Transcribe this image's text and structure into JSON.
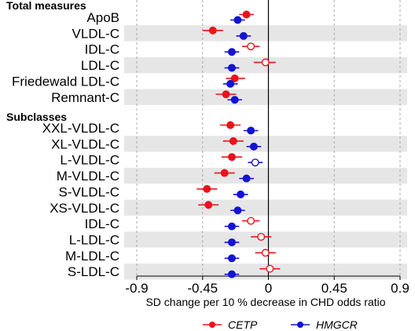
{
  "chart_data": {
    "type": "forest",
    "xlabel": "SD change per 10 % decrease in CHD odds ratio",
    "xlim": [
      -0.9,
      0.9
    ],
    "xticks": [
      -0.9,
      -0.45,
      0,
      0.45,
      0.9
    ],
    "xtick_labels": [
      "-0.9",
      "-0.45",
      "0",
      "0.45",
      "0.9"
    ],
    "grid": "vertical dashed at ticks",
    "legend_position": "bottom",
    "series": [
      {
        "name": "CETP",
        "color": "#e8141b"
      },
      {
        "name": "HMGCR",
        "color": "#1414d2"
      }
    ],
    "groups": [
      {
        "title": "Total measures",
        "rows": [
          {
            "label": "ApoB",
            "CETP": {
              "est": -0.15,
              "lo": -0.2,
              "hi": -0.1,
              "filled": true
            },
            "HMGCR": {
              "est": -0.21,
              "lo": -0.26,
              "hi": -0.16,
              "filled": true
            }
          },
          {
            "label": "VLDL-C",
            "CETP": {
              "est": -0.38,
              "lo": -0.45,
              "hi": -0.31,
              "filled": true
            },
            "HMGCR": {
              "est": -0.17,
              "lo": -0.22,
              "hi": -0.12,
              "filled": true
            }
          },
          {
            "label": "IDL-C",
            "CETP": {
              "est": -0.12,
              "lo": -0.18,
              "hi": -0.06,
              "filled": false
            },
            "HMGCR": {
              "est": -0.25,
              "lo": -0.3,
              "hi": -0.2,
              "filled": true
            }
          },
          {
            "label": "LDL-C",
            "CETP": {
              "est": -0.02,
              "lo": -0.1,
              "hi": 0.05,
              "filled": false
            },
            "HMGCR": {
              "est": -0.25,
              "lo": -0.3,
              "hi": -0.2,
              "filled": true
            }
          },
          {
            "label": "Friedewald LDL-C",
            "CETP": {
              "est": -0.23,
              "lo": -0.29,
              "hi": -0.16,
              "filled": true
            },
            "HMGCR": {
              "est": -0.26,
              "lo": -0.31,
              "hi": -0.21,
              "filled": true
            }
          },
          {
            "label": "Remnant-C",
            "CETP": {
              "est": -0.29,
              "lo": -0.36,
              "hi": -0.22,
              "filled": true
            },
            "HMGCR": {
              "est": -0.23,
              "lo": -0.28,
              "hi": -0.18,
              "filled": true
            }
          }
        ]
      },
      {
        "title": "Subclasses",
        "rows": [
          {
            "label": "XXL-VLDL-C",
            "CETP": {
              "est": -0.26,
              "lo": -0.33,
              "hi": -0.19,
              "filled": true
            },
            "HMGCR": {
              "est": -0.12,
              "lo": -0.17,
              "hi": -0.07,
              "filled": true
            }
          },
          {
            "label": "XL-VLDL-C",
            "CETP": {
              "est": -0.24,
              "lo": -0.31,
              "hi": -0.17,
              "filled": true
            },
            "HMGCR": {
              "est": -0.1,
              "lo": -0.15,
              "hi": -0.05,
              "filled": true
            }
          },
          {
            "label": "L-VLDL-C",
            "CETP": {
              "est": -0.25,
              "lo": -0.32,
              "hi": -0.18,
              "filled": true
            },
            "HMGCR": {
              "est": -0.09,
              "lo": -0.14,
              "hi": -0.04,
              "filled": false
            }
          },
          {
            "label": "M-VLDL-C",
            "CETP": {
              "est": -0.3,
              "lo": -0.37,
              "hi": -0.23,
              "filled": true
            },
            "HMGCR": {
              "est": -0.15,
              "lo": -0.2,
              "hi": -0.1,
              "filled": true
            }
          },
          {
            "label": "S-VLDL-C",
            "CETP": {
              "est": -0.42,
              "lo": -0.49,
              "hi": -0.35,
              "filled": true
            },
            "HMGCR": {
              "est": -0.19,
              "lo": -0.24,
              "hi": -0.14,
              "filled": true
            }
          },
          {
            "label": "XS-VLDL-C",
            "CETP": {
              "est": -0.41,
              "lo": -0.48,
              "hi": -0.34,
              "filled": true
            },
            "HMGCR": {
              "est": -0.21,
              "lo": -0.26,
              "hi": -0.16,
              "filled": true
            }
          },
          {
            "label": "IDL-C",
            "CETP": {
              "est": -0.12,
              "lo": -0.18,
              "hi": -0.06,
              "filled": false
            },
            "HMGCR": {
              "est": -0.25,
              "lo": -0.3,
              "hi": -0.2,
              "filled": true
            }
          },
          {
            "label": "L-LDL-C",
            "CETP": {
              "est": -0.05,
              "lo": -0.12,
              "hi": 0.02,
              "filled": false
            },
            "HMGCR": {
              "est": -0.25,
              "lo": -0.3,
              "hi": -0.2,
              "filled": true
            }
          },
          {
            "label": "M-LDL-C",
            "CETP": {
              "est": -0.02,
              "lo": -0.09,
              "hi": 0.05,
              "filled": false
            },
            "HMGCR": {
              "est": -0.25,
              "lo": -0.3,
              "hi": -0.2,
              "filled": true
            }
          },
          {
            "label": "S-LDL-C",
            "CETP": {
              "est": 0.01,
              "lo": -0.06,
              "hi": 0.08,
              "filled": false
            },
            "HMGCR": {
              "est": -0.25,
              "lo": -0.3,
              "hi": -0.2,
              "filled": true
            }
          }
        ]
      }
    ]
  }
}
